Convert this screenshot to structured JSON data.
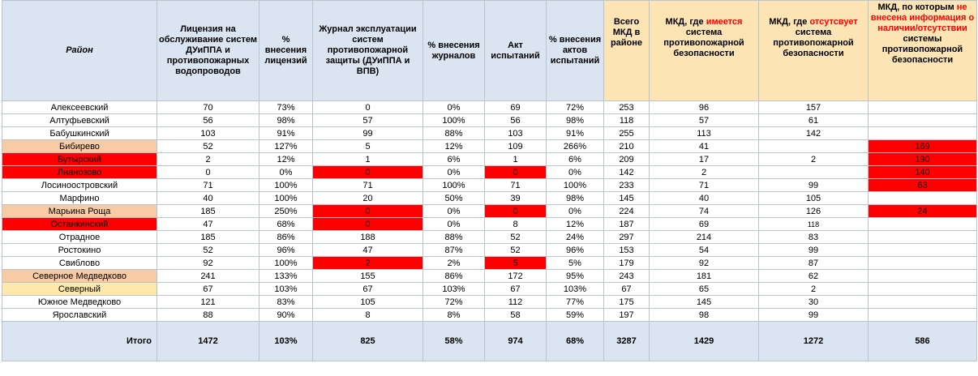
{
  "headers": {
    "rayon": "Район",
    "license": "Лицензия на обслуживание систем ДУиППА и противопожарных водопроводов",
    "pct_license": "% внесения лицензий",
    "journal": "Журнал эксплуатации систем противопожарной защиты (ДУиППА и ВПВ)",
    "pct_journal": "% внесения журналов",
    "act": "Акт испытаний",
    "pct_act": "% внесения актов испытаний",
    "total": "Всего МКД в районе",
    "has_pre": "МКД, где ",
    "has_red": "имеется",
    "has_post": " система противопожарной безопасности",
    "no_pre": "МКД, где ",
    "no_red": "отсутсвует",
    "no_post": " система противопожарной безопасности",
    "none_pre": "МКД, по которым ",
    "none_red": "не внесена информация о наличии/отсутствии",
    "none_post": " системы противопожарной безопасности"
  },
  "rows": [
    [
      "Алексеевский",
      "70",
      "73%",
      "0",
      "0%",
      "69",
      "72%",
      "253",
      "96",
      "157",
      ""
    ],
    [
      "Алтуфьевский",
      "56",
      "98%",
      "57",
      "100%",
      "56",
      "98%",
      "118",
      "57",
      "61",
      ""
    ],
    [
      "Бабушкинский",
      "103",
      "91%",
      "99",
      "88%",
      "103",
      "91%",
      "255",
      "113",
      "142",
      ""
    ],
    [
      "Бибирево",
      "52",
      "127%",
      "5",
      "12%",
      "109",
      "266%",
      "210",
      "41",
      "",
      "169"
    ],
    [
      "Бутырский",
      "2",
      "12%",
      "1",
      "6%",
      "1",
      "6%",
      "209",
      "17",
      "2",
      "190"
    ],
    [
      "Лианозово",
      "0",
      "0%",
      "0",
      "0%",
      "0",
      "0%",
      "142",
      "2",
      "",
      "140"
    ],
    [
      "Лосиноостровский",
      "71",
      "100%",
      "71",
      "100%",
      "71",
      "100%",
      "233",
      "71",
      "99",
      "63"
    ],
    [
      "Марфино",
      "40",
      "100%",
      "20",
      "50%",
      "39",
      "98%",
      "145",
      "40",
      "105",
      ""
    ],
    [
      "Марьина Роща",
      "185",
      "250%",
      "0",
      "0%",
      "0",
      "0%",
      "224",
      "74",
      "126",
      "24"
    ],
    [
      "Останкинский",
      "47",
      "68%",
      "0",
      "0%",
      "8",
      "12%",
      "187",
      "69",
      "118",
      ""
    ],
    [
      "Отрадное",
      "185",
      "86%",
      "188",
      "88%",
      "52",
      "24%",
      "297",
      "214",
      "83",
      ""
    ],
    [
      "Ростокино",
      "52",
      "96%",
      "47",
      "87%",
      "52",
      "96%",
      "153",
      "54",
      "99",
      ""
    ],
    [
      "Свиблово",
      "92",
      "100%",
      "2",
      "2%",
      "5",
      "5%",
      "179",
      "92",
      "87",
      ""
    ],
    [
      "Северное Медведково",
      "241",
      "133%",
      "155",
      "86%",
      "172",
      "95%",
      "243",
      "181",
      "62",
      ""
    ],
    [
      "Северный",
      "67",
      "103%",
      "67",
      "103%",
      "67",
      "103%",
      "67",
      "65",
      "2",
      ""
    ],
    [
      "Южное Медведково",
      "121",
      "83%",
      "105",
      "72%",
      "112",
      "77%",
      "175",
      "145",
      "30",
      ""
    ],
    [
      "Ярославский",
      "88",
      "90%",
      "8",
      "8%",
      "58",
      "59%",
      "197",
      "98",
      "99",
      ""
    ]
  ],
  "totals": [
    "Итого",
    "1472",
    "103%",
    "825",
    "58%",
    "974",
    "68%",
    "3287",
    "1429",
    "1272",
    "586"
  ],
  "highlight_colors": {
    "orange": "#f8cba5",
    "red": "#ff0000",
    "yellow": "#fde9a9",
    "header": "#dbe5f1",
    "header_yellow": "#fce4b5"
  }
}
